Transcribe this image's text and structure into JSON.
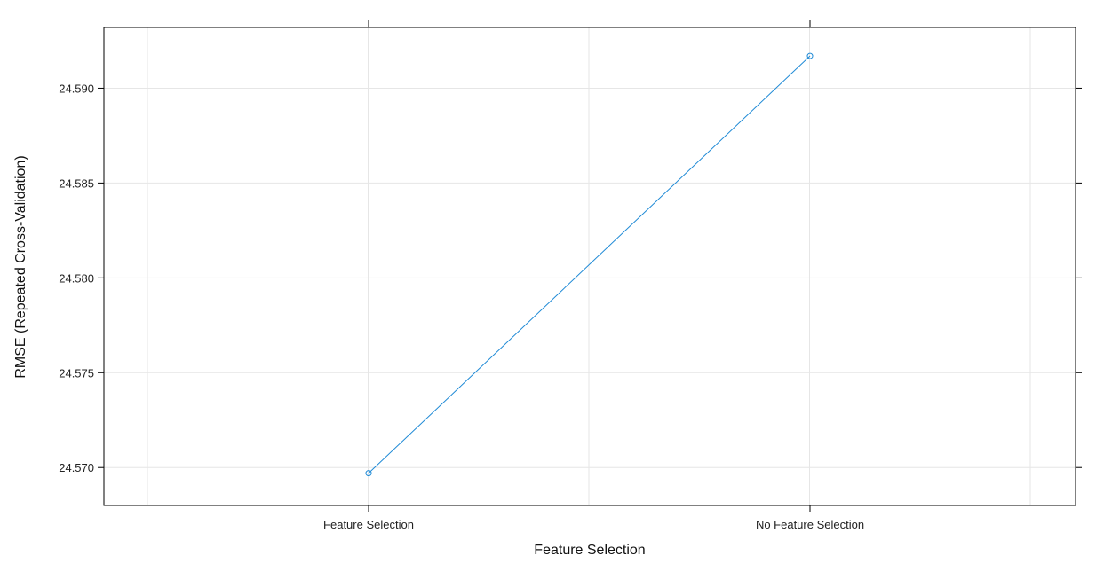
{
  "chart_data": {
    "type": "line",
    "title": "",
    "xlabel": "Feature Selection",
    "ylabel": "RMSE (Repeated Cross-Validation)",
    "categories": [
      "Feature Selection",
      "No Feature Selection"
    ],
    "series": [
      {
        "values": [
          24.5697,
          24.5917
        ],
        "color": "#1f8ad6"
      }
    ],
    "yticks": [
      "24.570",
      "24.575",
      "24.580",
      "24.585",
      "24.590"
    ],
    "ylim": [
      24.568,
      24.5932
    ],
    "grid": true,
    "legend": "none"
  }
}
